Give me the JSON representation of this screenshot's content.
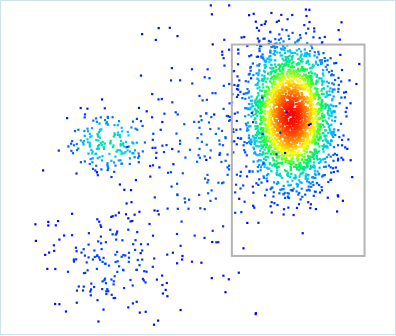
{
  "chart_data": {
    "type": "scatter",
    "title": "",
    "xlabel": "",
    "ylabel": "",
    "xlim": [
      0,
      1
    ],
    "ylim": [
      0,
      1
    ],
    "grid": false,
    "legend": "none",
    "density_colormap": [
      "#0000ff",
      "#00c8ff",
      "#00ff40",
      "#ffff00",
      "#ff8000",
      "#ff0000"
    ],
    "gate_color": "#b4b4b4",
    "gate": {
      "x": [
        0.583,
        0.918
      ],
      "y": [
        0.239,
        0.87
      ]
    },
    "populations": [
      {
        "name": "",
        "center": [
          0.27,
          0.58
        ],
        "spread": [
          0.06,
          0.05
        ],
        "count": 180,
        "peak": 0.3
      },
      {
        "name": "",
        "center": [
          0.28,
          0.22
        ],
        "spread": [
          0.09,
          0.09
        ],
        "count": 170,
        "peak": 0.08
      },
      {
        "name": "",
        "center": [
          0.73,
          0.66
        ],
        "spread": [
          0.055,
          0.105
        ],
        "count": 2600,
        "peak": 1.0
      },
      {
        "name": "",
        "center": [
          0.52,
          0.55
        ],
        "spread": [
          0.1,
          0.2
        ],
        "count": 200,
        "peak": 0.1
      }
    ]
  }
}
